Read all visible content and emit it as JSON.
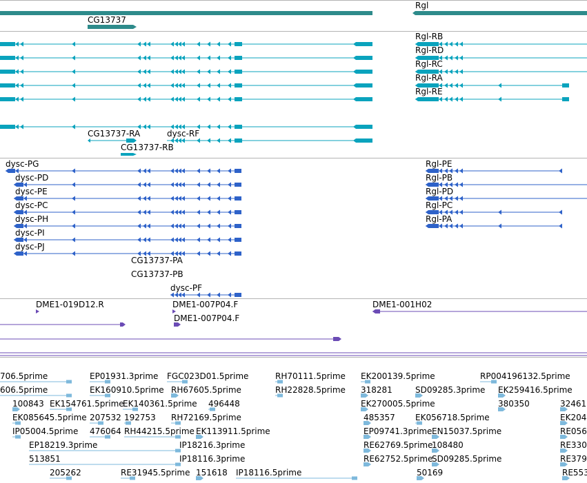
{
  "colors": {
    "gene": "#2e8b8b",
    "transcript": "#0aa3bd",
    "protein": "#2e62c9",
    "clone": "#6b4bb5",
    "est": "#7eb9dc",
    "divider": "#b3b3b3"
  },
  "genes": {
    "cg13737": "CG13737",
    "rgl": "Rgl"
  },
  "transcripts": {
    "rgl_rb": "Rgl-RB",
    "rgl_rd": "Rgl-RD",
    "rgl_rc": "Rgl-RC",
    "rgl_ra": "Rgl-RA",
    "rgl_re": "Rgl-RE",
    "cg13737_ra": "CG13737-RA",
    "dysc_rf": "dysc-RF",
    "cg13737_rb": "CG13737-RB"
  },
  "proteins": {
    "dysc_pg": "dysc-PG",
    "dysc_pd": "dysc-PD",
    "dysc_pe": "dysc-PE",
    "dysc_pc": "dysc-PC",
    "dysc_ph": "dysc-PH",
    "dysc_pi": "dysc-PI",
    "dysc_pj": "dysc-PJ",
    "cg13737_pa": "CG13737-PA",
    "cg13737_pb": "CG13737-PB",
    "dysc_pf": "dysc-PF",
    "rgl_pe": "Rgl-PE",
    "rgl_pb": "Rgl-PB",
    "rgl_pd": "Rgl-PD",
    "rgl_pc": "Rgl-PC",
    "rgl_pa": "Rgl-PA"
  },
  "clones": {
    "c1": "DME1-019D12.R",
    "c2": "DME1-007P04.F",
    "c3": "DME1-007P04.F",
    "c4": "DME1-001H02"
  },
  "ests": {
    "e01": "706.5prime",
    "e02": "EP01931.3prime",
    "e03": "FGC023D01.5prime",
    "e04": "RH70111.5prime",
    "e05": "EK200139.5prime",
    "e06": "RP004196132.5prime",
    "e07": "606.5prime",
    "e08": "EK160910.5prime",
    "e09": "RH67605.5prime",
    "e10": "RH22828.5prime",
    "e11": "318281",
    "e12": "SD09285.3prime",
    "e13": "EK259416.5prime",
    "e14": "100843",
    "e15": "EK154761.5prime",
    "e16": "EK140361.5prime",
    "e17": "496448",
    "e18": "EK270005.5prime",
    "e19": "380350",
    "e20": "32461",
    "e21": "EK085645.5prime",
    "e22": "207532",
    "e23": "192753",
    "e24": "RH72169.5prime",
    "e25": "485357",
    "e26": "EK056718.5prime",
    "e27": "EK204",
    "e28": "IP05004.5prime",
    "e29": "476064",
    "e30": "RH44215.5prime",
    "e31": "EK113911.5prime",
    "e32": "EP09741.3prime",
    "e33": "EN15037.5prime",
    "e34": "RE056",
    "e35": "EP18219.3prime",
    "e36": "IP18216.3prime",
    "e37": "RE62769.5prime",
    "e38": "108480",
    "e39": "RE330",
    "e40": "513851",
    "e41": "IP18116.3prime",
    "e42": "RE62752.5prime",
    "e43": "SD09285.5prime",
    "e44": "RE379",
    "e45": "205262",
    "e46": "RE31945.5prime",
    "e47": "151618",
    "e48": "IP18116.5prime",
    "e49": "50169",
    "e50": "RE553"
  }
}
